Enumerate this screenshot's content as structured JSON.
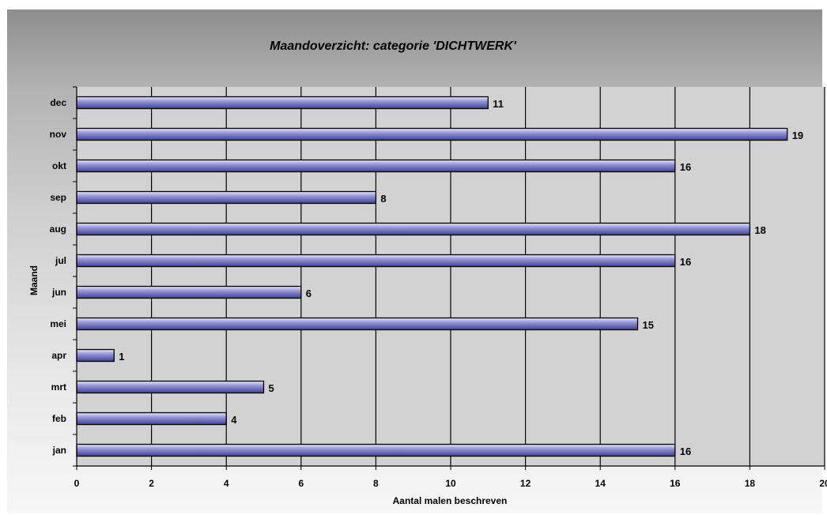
{
  "chart_data": {
    "type": "bar",
    "orientation": "horizontal",
    "title": "Maandoverzicht: categorie 'DICHTWERK'",
    "xlabel": "Aantal malen beschreven",
    "ylabel": "Maand",
    "xlim": [
      0,
      20
    ],
    "x_ticks": [
      "0",
      "2",
      "4",
      "6",
      "8",
      "10",
      "12",
      "14",
      "16",
      "18",
      "20"
    ],
    "grid": true,
    "categories": [
      "jan",
      "feb",
      "mrt",
      "apr",
      "mei",
      "jun",
      "jul",
      "aug",
      "sep",
      "okt",
      "nov",
      "dec"
    ],
    "values": [
      16,
      4,
      5,
      1,
      15,
      6,
      16,
      18,
      8,
      16,
      19,
      11
    ],
    "bar_color": "#5c5cb0"
  }
}
